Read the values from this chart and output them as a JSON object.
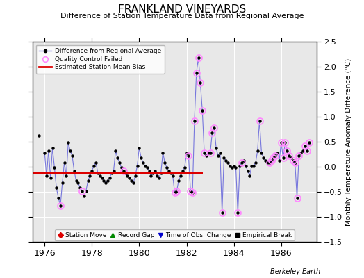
{
  "title": "FRANKLAND VINEYARDS",
  "subtitle": "Difference of Station Temperature Data from Regional Average",
  "ylabel": "Monthly Temperature Anomaly Difference (°C)",
  "credit": "Berkeley Earth",
  "xlim": [
    1975.5,
    1987.5
  ],
  "ylim": [
    -1.5,
    2.5
  ],
  "yticks": [
    -1.5,
    -1.0,
    -0.5,
    0.0,
    0.5,
    1.0,
    1.5,
    2.0,
    2.5
  ],
  "xticks": [
    1976,
    1978,
    1980,
    1982,
    1984,
    1986
  ],
  "bias_level": -0.12,
  "bias_xstart": 1975.5,
  "bias_xend": 1982.7,
  "background_color": "#e8e8e8",
  "line_color": "#7777dd",
  "marker_color": "#000000",
  "qc_color": "#ff88ff",
  "bias_color": "#dd0000",
  "isolated_point_x": 1975.75,
  "isolated_point_y": 0.62,
  "data": [
    [
      1976.0,
      0.28
    ],
    [
      1976.083,
      -0.18
    ],
    [
      1976.167,
      0.32
    ],
    [
      1976.25,
      -0.22
    ],
    [
      1976.333,
      0.38
    ],
    [
      1976.417,
      -0.02
    ],
    [
      1976.5,
      -0.42
    ],
    [
      1976.583,
      -0.62
    ],
    [
      1976.667,
      -0.78
    ],
    [
      1976.75,
      -0.32
    ],
    [
      1976.833,
      0.08
    ],
    [
      1976.917,
      -0.18
    ],
    [
      1977.0,
      0.48
    ],
    [
      1977.083,
      0.32
    ],
    [
      1977.167,
      0.22
    ],
    [
      1977.25,
      -0.08
    ],
    [
      1977.333,
      -0.28
    ],
    [
      1977.417,
      -0.32
    ],
    [
      1977.5,
      -0.42
    ],
    [
      1977.583,
      -0.48
    ],
    [
      1977.667,
      -0.58
    ],
    [
      1977.75,
      -0.48
    ],
    [
      1977.833,
      -0.28
    ],
    [
      1977.917,
      -0.18
    ],
    [
      1978.0,
      -0.08
    ],
    [
      1978.083,
      0.02
    ],
    [
      1978.167,
      0.08
    ],
    [
      1978.25,
      -0.12
    ],
    [
      1978.333,
      -0.18
    ],
    [
      1978.417,
      -0.22
    ],
    [
      1978.5,
      -0.28
    ],
    [
      1978.583,
      -0.32
    ],
    [
      1978.667,
      -0.28
    ],
    [
      1978.75,
      -0.22
    ],
    [
      1978.833,
      -0.12
    ],
    [
      1978.917,
      -0.08
    ],
    [
      1979.0,
      0.32
    ],
    [
      1979.083,
      0.18
    ],
    [
      1979.167,
      0.08
    ],
    [
      1979.25,
      -0.02
    ],
    [
      1979.333,
      -0.08
    ],
    [
      1979.417,
      -0.12
    ],
    [
      1979.5,
      -0.18
    ],
    [
      1979.583,
      -0.22
    ],
    [
      1979.667,
      -0.28
    ],
    [
      1979.75,
      -0.32
    ],
    [
      1979.833,
      -0.18
    ],
    [
      1979.917,
      0.02
    ],
    [
      1980.0,
      0.38
    ],
    [
      1980.083,
      0.18
    ],
    [
      1980.167,
      0.08
    ],
    [
      1980.25,
      0.02
    ],
    [
      1980.333,
      -0.02
    ],
    [
      1980.417,
      -0.08
    ],
    [
      1980.5,
      -0.18
    ],
    [
      1980.583,
      -0.12
    ],
    [
      1980.667,
      -0.08
    ],
    [
      1980.75,
      -0.18
    ],
    [
      1980.833,
      -0.22
    ],
    [
      1980.917,
      -0.12
    ],
    [
      1981.0,
      0.28
    ],
    [
      1981.083,
      0.08
    ],
    [
      1981.167,
      -0.02
    ],
    [
      1981.25,
      -0.08
    ],
    [
      1981.333,
      -0.12
    ],
    [
      1981.417,
      -0.18
    ],
    [
      1981.5,
      -0.52
    ],
    [
      1981.583,
      -0.48
    ],
    [
      1981.667,
      -0.28
    ],
    [
      1981.75,
      -0.18
    ],
    [
      1981.833,
      -0.08
    ],
    [
      1981.917,
      -0.02
    ],
    [
      1982.0,
      0.28
    ],
    [
      1982.083,
      0.22
    ],
    [
      1982.167,
      -0.48
    ],
    [
      1982.25,
      -0.52
    ],
    [
      1982.333,
      0.92
    ],
    [
      1982.417,
      1.88
    ],
    [
      1982.5,
      2.18
    ],
    [
      1982.583,
      1.68
    ],
    [
      1982.667,
      1.12
    ],
    [
      1982.75,
      0.28
    ],
    [
      1982.833,
      0.22
    ],
    [
      1982.917,
      0.28
    ],
    [
      1983.0,
      0.28
    ],
    [
      1983.083,
      0.68
    ],
    [
      1983.167,
      0.78
    ],
    [
      1983.25,
      0.38
    ],
    [
      1983.333,
      0.22
    ],
    [
      1983.417,
      0.28
    ],
    [
      1983.5,
      -0.92
    ],
    [
      1983.583,
      0.18
    ],
    [
      1983.667,
      0.12
    ],
    [
      1983.75,
      0.08
    ],
    [
      1983.833,
      0.02
    ],
    [
      1983.917,
      -0.02
    ],
    [
      1984.0,
      0.02
    ],
    [
      1984.083,
      -0.02
    ],
    [
      1984.167,
      -0.92
    ],
    [
      1984.25,
      0.02
    ],
    [
      1984.333,
      0.08
    ],
    [
      1984.417,
      0.12
    ],
    [
      1984.5,
      0.02
    ],
    [
      1984.583,
      -0.08
    ],
    [
      1984.667,
      -0.18
    ],
    [
      1984.75,
      0.02
    ],
    [
      1984.833,
      0.02
    ],
    [
      1984.917,
      0.08
    ],
    [
      1985.0,
      0.32
    ],
    [
      1985.083,
      0.92
    ],
    [
      1985.167,
      0.28
    ],
    [
      1985.25,
      0.18
    ],
    [
      1985.333,
      0.12
    ],
    [
      1985.417,
      0.08
    ],
    [
      1985.5,
      0.08
    ],
    [
      1985.583,
      0.12
    ],
    [
      1985.667,
      0.18
    ],
    [
      1985.75,
      0.22
    ],
    [
      1985.833,
      0.28
    ],
    [
      1985.917,
      0.12
    ],
    [
      1986.0,
      0.48
    ],
    [
      1986.083,
      0.18
    ],
    [
      1986.167,
      0.48
    ],
    [
      1986.25,
      0.32
    ],
    [
      1986.333,
      0.22
    ],
    [
      1986.417,
      0.18
    ],
    [
      1986.5,
      0.12
    ],
    [
      1986.583,
      0.08
    ],
    [
      1986.667,
      -0.62
    ],
    [
      1986.75,
      0.22
    ],
    [
      1986.833,
      0.28
    ],
    [
      1986.917,
      0.32
    ],
    [
      1987.0,
      0.42
    ],
    [
      1987.083,
      0.32
    ],
    [
      1987.167,
      0.48
    ]
  ],
  "qc_x_values": [
    1976.667,
    1977.583,
    1979.333,
    1981.5,
    1981.583,
    1982.083,
    1982.167,
    1982.25,
    1982.333,
    1982.417,
    1982.5,
    1982.583,
    1982.667,
    1982.75,
    1983.0,
    1983.083,
    1983.167,
    1983.5,
    1984.167,
    1984.333,
    1985.083,
    1985.5,
    1985.583,
    1985.667,
    1985.75,
    1986.0,
    1986.083,
    1986.167,
    1986.25,
    1986.333,
    1986.5,
    1986.583,
    1986.667,
    1986.75,
    1987.0,
    1987.083,
    1987.167
  ]
}
